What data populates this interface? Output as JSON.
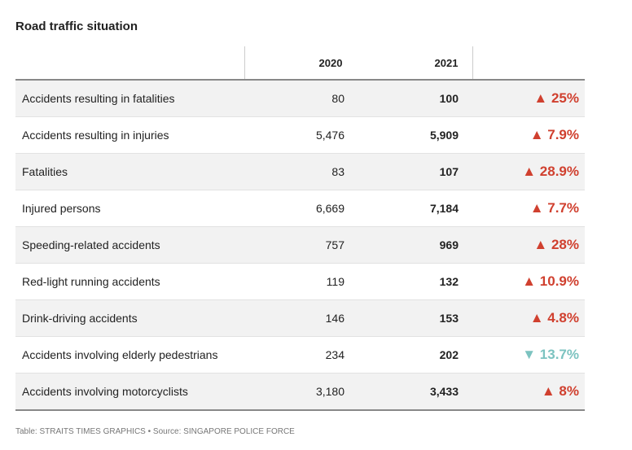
{
  "header": {
    "title": "Road traffic situation"
  },
  "table": {
    "columns": [
      "2020",
      "2021"
    ],
    "rows": [
      [
        "Accidents resulting in fatalities",
        "80",
        "100",
        "▲ 25%"
      ],
      [
        "Accidents resulting in injuries",
        "5,476",
        "5,909",
        "▲ 7.9%"
      ],
      [
        "Fatalities",
        "83",
        "107",
        "▲ 28.9%"
      ],
      [
        "Injured persons",
        "6,669",
        "7,184",
        "▲ 7.7%"
      ],
      [
        "Speeding-related accidents",
        "757",
        "969",
        "▲ 28%"
      ],
      [
        "Red-light running accidents",
        "119",
        "132",
        "▲ 10.9%"
      ],
      [
        "Drink-driving accidents",
        "146",
        "153",
        "▲ 4.8%"
      ],
      [
        "Accidents involving elderly pedestrians",
        "234",
        "202",
        "▼ 13.7%"
      ],
      [
        "Accidents involving motorcyclists",
        "3,180",
        "3,433",
        "▲ 8%"
      ]
    ]
  },
  "footer": {
    "credit": "Table: STRAITS TIMES GRAPHICS • Source: SINGAPORE POLICE FORCE"
  }
}
